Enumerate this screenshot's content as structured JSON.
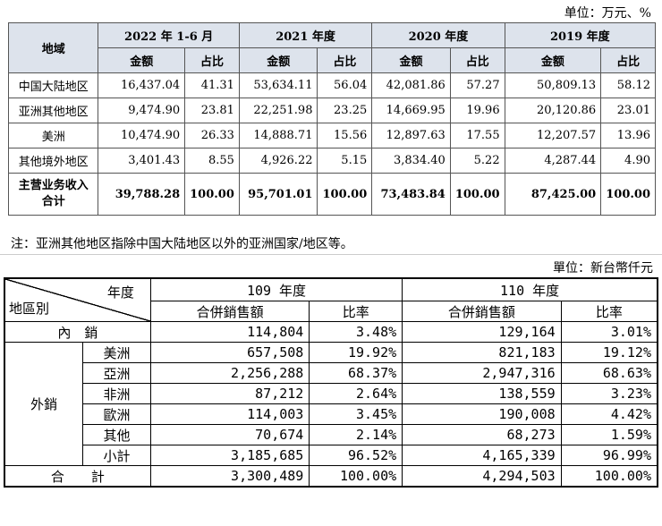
{
  "table1": {
    "unit": "单位：万元、%",
    "region_header": "地域",
    "periods": [
      "2022 年 1-6 月",
      "2021 年度",
      "2020 年度",
      "2019 年度"
    ],
    "sub_headers": [
      "金额",
      "占比"
    ],
    "rows": [
      {
        "region": "中国大陆地区",
        "values": [
          "16,437.04",
          "41.31",
          "53,634.11",
          "56.04",
          "42,081.86",
          "57.27",
          "50,809.13",
          "58.12"
        ]
      },
      {
        "region": "亚洲其他地区",
        "values": [
          "9,474.90",
          "23.81",
          "22,251.98",
          "23.25",
          "14,669.95",
          "19.96",
          "20,120.86",
          "23.01"
        ]
      },
      {
        "region": "美洲",
        "values": [
          "10,474.90",
          "26.33",
          "14,888.71",
          "15.56",
          "12,897.63",
          "17.55",
          "12,207.57",
          "13.96"
        ]
      },
      {
        "region": "其他境外地区",
        "values": [
          "3,401.43",
          "8.55",
          "4,926.22",
          "5.15",
          "3,834.40",
          "5.22",
          "4,287.44",
          "4.90"
        ]
      }
    ],
    "total": {
      "region_line1": "主营业务收入",
      "region_line2": "合计",
      "values": [
        "39,788.28",
        "100.00",
        "95,701.01",
        "100.00",
        "73,483.84",
        "100.00",
        "87,425.00",
        "100.00"
      ]
    },
    "note": "注：亚洲其他地区指除中国大陆地区以外的亚洲国家/地区等。"
  },
  "table2": {
    "unit": "單位：新台幣仟元",
    "corner_top": "年度",
    "corner_bottom": "地區別",
    "periods": [
      "109 年度",
      "110 年度"
    ],
    "sub_headers": [
      "合併銷售額",
      "比率"
    ],
    "domestic": {
      "label": "內　銷",
      "values": [
        "114,804",
        "3.48%",
        "129,164",
        "3.01%"
      ]
    },
    "export_label": "外銷",
    "export_rows": [
      {
        "label": "美洲",
        "values": [
          "657,508",
          "19.92%",
          "821,183",
          "19.12%"
        ]
      },
      {
        "label": "亞洲",
        "values": [
          "2,256,288",
          "68.37%",
          "2,947,316",
          "68.63%"
        ]
      },
      {
        "label": "非洲",
        "values": [
          "87,212",
          "2.64%",
          "138,559",
          "3.23%"
        ]
      },
      {
        "label": "歐洲",
        "values": [
          "114,003",
          "3.45%",
          "190,008",
          "4.42%"
        ]
      },
      {
        "label": "其他",
        "values": [
          "70,674",
          "2.14%",
          "68,273",
          "1.59%"
        ]
      },
      {
        "label": "小計",
        "values": [
          "3,185,685",
          "96.52%",
          "4,165,339",
          "96.99%"
        ]
      }
    ],
    "total": {
      "label": "合　　計",
      "values": [
        "3,300,489",
        "100.00%",
        "4,294,503",
        "100.00%"
      ]
    }
  }
}
